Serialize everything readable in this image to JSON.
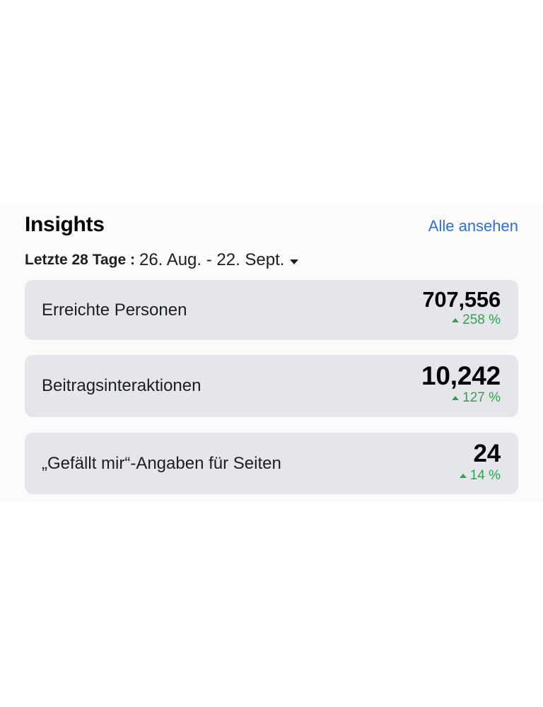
{
  "insights": {
    "title": "Insights",
    "see_all_label": "Alle ansehen",
    "date_range": {
      "label": "Letzte 28 Tage :",
      "value": "26. Aug. - 22. Sept."
    },
    "metrics": [
      {
        "label": "Erreichte Personen",
        "value": "707,556",
        "change": "258 %"
      },
      {
        "label": "Beitragsinteraktionen",
        "value": "10,242",
        "change": "127 %"
      },
      {
        "label": "„Gefällt mir“-Angaben für Seiten",
        "value": "24",
        "change": "14 %"
      }
    ]
  },
  "colors": {
    "link": "#2f6fd0",
    "positive_change": "#31a24c",
    "card_background": "#e5e6eb"
  }
}
